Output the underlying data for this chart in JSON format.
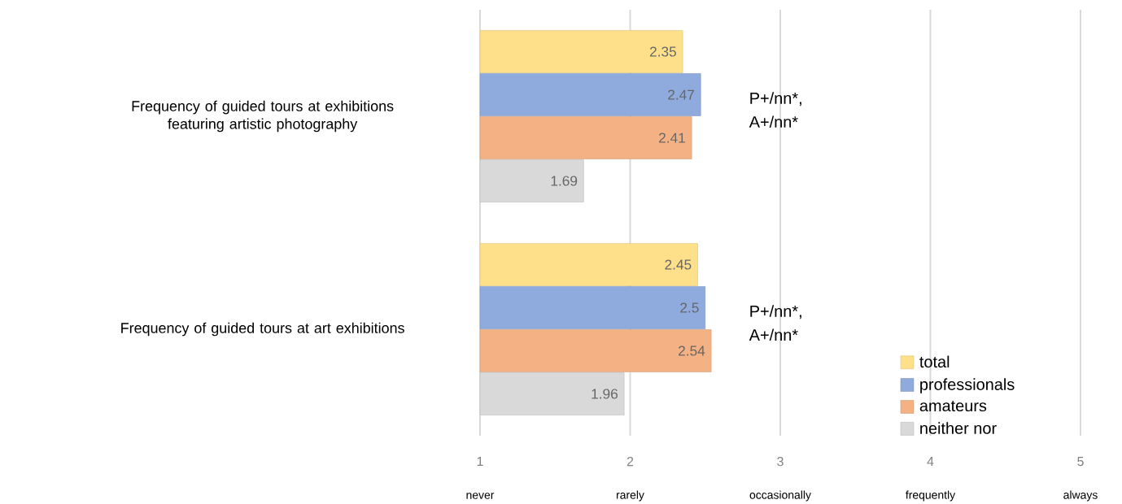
{
  "chart_data": {
    "type": "bar",
    "orientation": "horizontal",
    "categories": [
      "Frequency of guided tours at exhibitions featuring artistic photography",
      "Frequency of guided tours at art exhibitions"
    ],
    "series": [
      {
        "name": "total",
        "color": "#ffe08a",
        "values": [
          2.35,
          2.45
        ]
      },
      {
        "name": "professionals",
        "color": "#8faadc",
        "values": [
          2.47,
          2.5
        ]
      },
      {
        "name": "amateurs",
        "color": "#f4b183",
        "values": [
          2.41,
          2.54
        ]
      },
      {
        "name": "neither nor",
        "color": "#d9d9d9",
        "values": [
          1.69,
          1.96
        ]
      }
    ],
    "xlim": [
      1,
      5
    ],
    "xticks": [
      1,
      2,
      3,
      4,
      5
    ],
    "data_labels": true,
    "grid": "x",
    "legend": "bottom right",
    "annotations": [
      "P+/nn*, A+/nn*",
      "P+/nn*, A+/nn*",
      "never",
      "rarely",
      "occasionally",
      "frequently",
      "always"
    ]
  }
}
